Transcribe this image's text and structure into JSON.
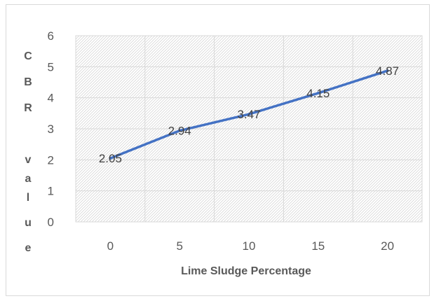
{
  "chart_data": {
    "type": "line",
    "title": "",
    "xlabel": "Lime Sludge Percentage",
    "ylabel_letters": [
      "C",
      "B",
      "R",
      "",
      "v",
      "a",
      "l",
      "u",
      "e"
    ],
    "x": [
      "0",
      "5",
      "10",
      "15",
      "20"
    ],
    "y_ticks": [
      "0",
      "1",
      "2",
      "3",
      "4",
      "5",
      "6"
    ],
    "series": [
      {
        "values": [
          2.05,
          2.94,
          3.47,
          4.15,
          4.87
        ],
        "color": "#4472c4"
      }
    ],
    "data_labels": [
      "2.05",
      "2.94",
      "3.47",
      "4.15",
      "4.87"
    ],
    "ylim": [
      0,
      6
    ],
    "grid": true,
    "plot_fill": "hatched light gray",
    "legend": "none"
  }
}
